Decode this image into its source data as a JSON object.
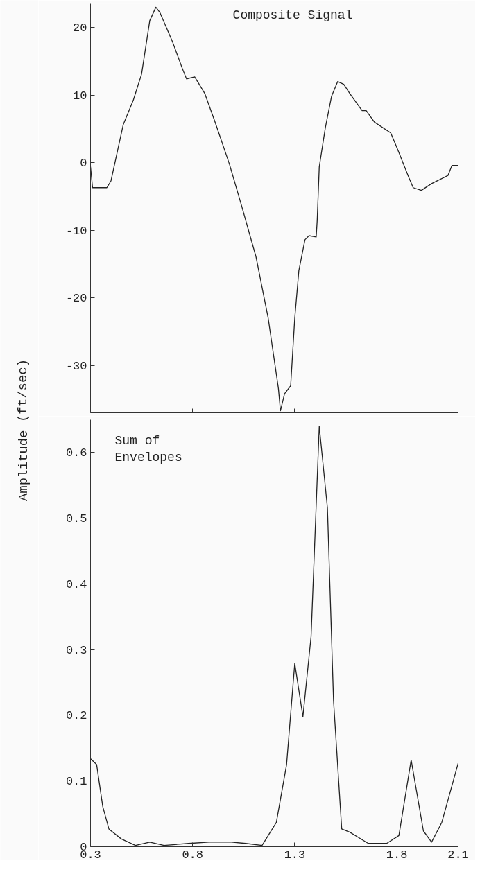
{
  "chart_data": [
    {
      "type": "line",
      "title": "Composite Signal",
      "ylabel": "Amplitude (ft/sec)",
      "xlim": [
        0.3,
        2.1
      ],
      "ylim": [
        -37,
        23.5
      ],
      "xticks": [
        0.3,
        0.8,
        1.3,
        1.8,
        2.1
      ],
      "yticks": [
        -30,
        -20,
        -10,
        0,
        10,
        20
      ],
      "tick_labels": "y",
      "grid": false,
      "series": [
        {
          "color": "#222222",
          "x": [
            0.3,
            0.31,
            0.38,
            0.4,
            0.46,
            0.51,
            0.55,
            0.59,
            0.62,
            0.64,
            0.7,
            0.75,
            0.77,
            0.81,
            0.86,
            0.91,
            0.98,
            1.04,
            1.11,
            1.17,
            1.22,
            1.23,
            1.25,
            1.28,
            1.3,
            1.32,
            1.35,
            1.37,
            1.405,
            1.41,
            1.42,
            1.45,
            1.48,
            1.51,
            1.54,
            1.57,
            1.63,
            1.65,
            1.69,
            1.77,
            1.81,
            1.86,
            1.88,
            1.92,
            1.97,
            2.05,
            2.07,
            2.1
          ],
          "values": [
            -0.6,
            -3.7,
            -3.7,
            -2.7,
            5.6,
            9.3,
            13.1,
            21.0,
            23.0,
            22.2,
            18.0,
            13.9,
            12.4,
            12.7,
            10.2,
            6.0,
            -0.2,
            -6.4,
            -13.9,
            -23.0,
            -33.4,
            -36.7,
            -34.2,
            -33.0,
            -23.0,
            -16.0,
            -11.4,
            -10.8,
            -11.0,
            -8.5,
            -0.6,
            5.2,
            9.8,
            12.0,
            11.6,
            10.2,
            7.7,
            7.7,
            6.0,
            4.4,
            1.5,
            -2.3,
            -3.7,
            -4.1,
            -3.1,
            -1.9,
            -0.4,
            -0.4
          ]
        }
      ]
    },
    {
      "type": "line",
      "title": "Sum of\nEnvelopes",
      "xlim": [
        0.3,
        2.1
      ],
      "ylim": [
        0,
        0.65
      ],
      "xticks": [
        0.3,
        0.8,
        1.3,
        1.8,
        2.1
      ],
      "yticks": [
        0,
        0.1,
        0.2,
        0.3,
        0.4,
        0.5,
        0.6
      ],
      "grid": false,
      "series": [
        {
          "color": "#222222",
          "x": [
            0.3,
            0.33,
            0.36,
            0.39,
            0.45,
            0.52,
            0.59,
            0.66,
            0.78,
            0.88,
            0.99,
            1.06,
            1.14,
            1.21,
            1.26,
            1.3,
            1.34,
            1.38,
            1.42,
            1.46,
            1.49,
            1.53,
            1.57,
            1.66,
            1.75,
            1.81,
            1.87,
            1.93,
            1.97,
            2.02,
            2.1
          ],
          "values": [
            0.134,
            0.125,
            0.061,
            0.027,
            0.012,
            0.002,
            0.007,
            0.002,
            0.005,
            0.007,
            0.007,
            0.005,
            0.002,
            0.037,
            0.125,
            0.279,
            0.198,
            0.32,
            0.64,
            0.516,
            0.222,
            0.027,
            0.022,
            0.005,
            0.005,
            0.017,
            0.132,
            0.024,
            0.007,
            0.037,
            0.127
          ]
        }
      ]
    }
  ]
}
